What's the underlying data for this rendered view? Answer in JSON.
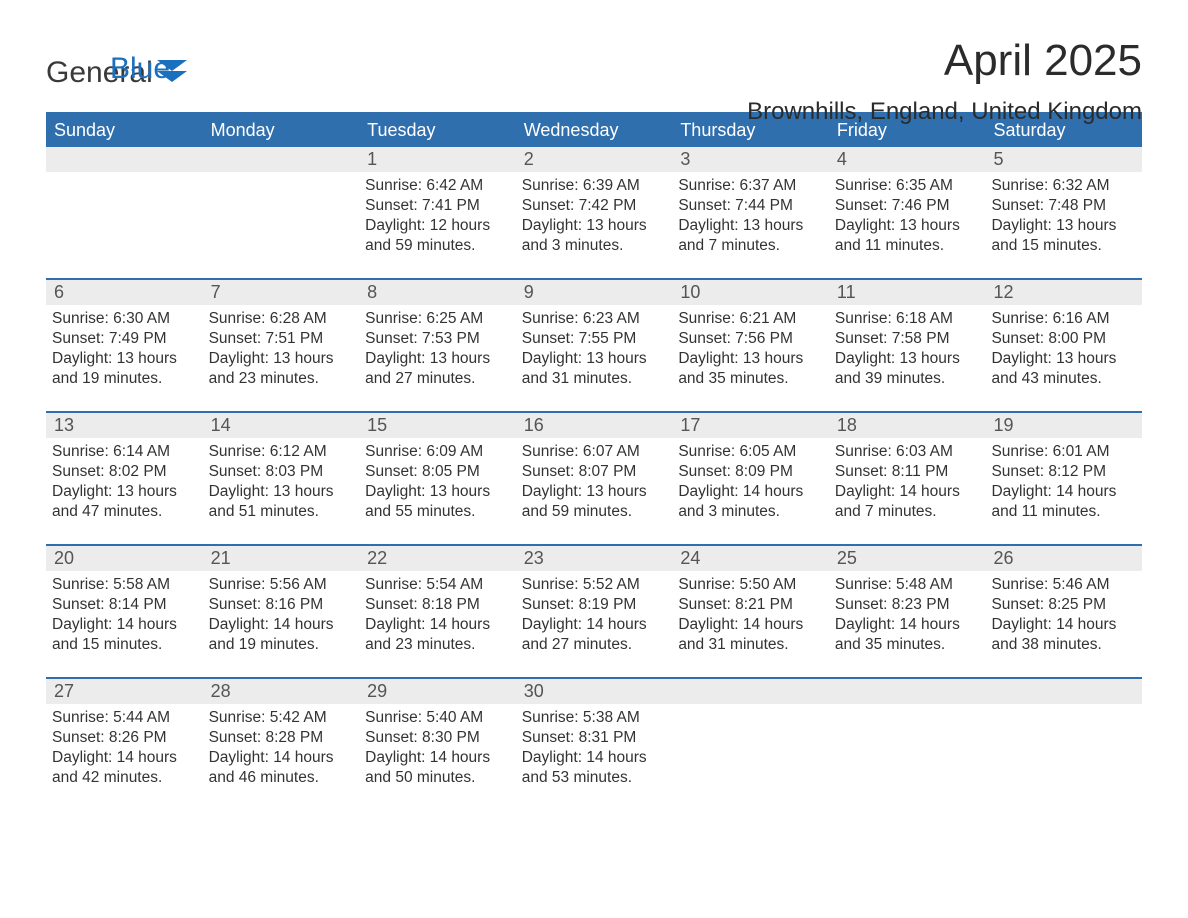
{
  "logo": {
    "word1": "General",
    "word2": "Blue"
  },
  "title": "April 2025",
  "location": "Brownhills, England, United Kingdom",
  "colors": {
    "header_bg": "#2f6fae",
    "header_text": "#ffffff",
    "daynum_bg": "#ececec",
    "daynum_text": "#555555",
    "body_text": "#333333",
    "logo_blue": "#1a6fbf",
    "page_bg": "#ffffff"
  },
  "typography": {
    "title_fontsize": 44,
    "location_fontsize": 24,
    "dow_fontsize": 18,
    "daynum_fontsize": 18,
    "detail_fontsize": 15.5
  },
  "days_of_week": [
    "Sunday",
    "Monday",
    "Tuesday",
    "Wednesday",
    "Thursday",
    "Friday",
    "Saturday"
  ],
  "weeks": [
    [
      null,
      null,
      {
        "n": "1",
        "sr": "Sunrise: 6:42 AM",
        "ss": "Sunset: 7:41 PM",
        "d1": "Daylight: 12 hours",
        "d2": "and 59 minutes."
      },
      {
        "n": "2",
        "sr": "Sunrise: 6:39 AM",
        "ss": "Sunset: 7:42 PM",
        "d1": "Daylight: 13 hours",
        "d2": "and 3 minutes."
      },
      {
        "n": "3",
        "sr": "Sunrise: 6:37 AM",
        "ss": "Sunset: 7:44 PM",
        "d1": "Daylight: 13 hours",
        "d2": "and 7 minutes."
      },
      {
        "n": "4",
        "sr": "Sunrise: 6:35 AM",
        "ss": "Sunset: 7:46 PM",
        "d1": "Daylight: 13 hours",
        "d2": "and 11 minutes."
      },
      {
        "n": "5",
        "sr": "Sunrise: 6:32 AM",
        "ss": "Sunset: 7:48 PM",
        "d1": "Daylight: 13 hours",
        "d2": "and 15 minutes."
      }
    ],
    [
      {
        "n": "6",
        "sr": "Sunrise: 6:30 AM",
        "ss": "Sunset: 7:49 PM",
        "d1": "Daylight: 13 hours",
        "d2": "and 19 minutes."
      },
      {
        "n": "7",
        "sr": "Sunrise: 6:28 AM",
        "ss": "Sunset: 7:51 PM",
        "d1": "Daylight: 13 hours",
        "d2": "and 23 minutes."
      },
      {
        "n": "8",
        "sr": "Sunrise: 6:25 AM",
        "ss": "Sunset: 7:53 PM",
        "d1": "Daylight: 13 hours",
        "d2": "and 27 minutes."
      },
      {
        "n": "9",
        "sr": "Sunrise: 6:23 AM",
        "ss": "Sunset: 7:55 PM",
        "d1": "Daylight: 13 hours",
        "d2": "and 31 minutes."
      },
      {
        "n": "10",
        "sr": "Sunrise: 6:21 AM",
        "ss": "Sunset: 7:56 PM",
        "d1": "Daylight: 13 hours",
        "d2": "and 35 minutes."
      },
      {
        "n": "11",
        "sr": "Sunrise: 6:18 AM",
        "ss": "Sunset: 7:58 PM",
        "d1": "Daylight: 13 hours",
        "d2": "and 39 minutes."
      },
      {
        "n": "12",
        "sr": "Sunrise: 6:16 AM",
        "ss": "Sunset: 8:00 PM",
        "d1": "Daylight: 13 hours",
        "d2": "and 43 minutes."
      }
    ],
    [
      {
        "n": "13",
        "sr": "Sunrise: 6:14 AM",
        "ss": "Sunset: 8:02 PM",
        "d1": "Daylight: 13 hours",
        "d2": "and 47 minutes."
      },
      {
        "n": "14",
        "sr": "Sunrise: 6:12 AM",
        "ss": "Sunset: 8:03 PM",
        "d1": "Daylight: 13 hours",
        "d2": "and 51 minutes."
      },
      {
        "n": "15",
        "sr": "Sunrise: 6:09 AM",
        "ss": "Sunset: 8:05 PM",
        "d1": "Daylight: 13 hours",
        "d2": "and 55 minutes."
      },
      {
        "n": "16",
        "sr": "Sunrise: 6:07 AM",
        "ss": "Sunset: 8:07 PM",
        "d1": "Daylight: 13 hours",
        "d2": "and 59 minutes."
      },
      {
        "n": "17",
        "sr": "Sunrise: 6:05 AM",
        "ss": "Sunset: 8:09 PM",
        "d1": "Daylight: 14 hours",
        "d2": "and 3 minutes."
      },
      {
        "n": "18",
        "sr": "Sunrise: 6:03 AM",
        "ss": "Sunset: 8:11 PM",
        "d1": "Daylight: 14 hours",
        "d2": "and 7 minutes."
      },
      {
        "n": "19",
        "sr": "Sunrise: 6:01 AM",
        "ss": "Sunset: 8:12 PM",
        "d1": "Daylight: 14 hours",
        "d2": "and 11 minutes."
      }
    ],
    [
      {
        "n": "20",
        "sr": "Sunrise: 5:58 AM",
        "ss": "Sunset: 8:14 PM",
        "d1": "Daylight: 14 hours",
        "d2": "and 15 minutes."
      },
      {
        "n": "21",
        "sr": "Sunrise: 5:56 AM",
        "ss": "Sunset: 8:16 PM",
        "d1": "Daylight: 14 hours",
        "d2": "and 19 minutes."
      },
      {
        "n": "22",
        "sr": "Sunrise: 5:54 AM",
        "ss": "Sunset: 8:18 PM",
        "d1": "Daylight: 14 hours",
        "d2": "and 23 minutes."
      },
      {
        "n": "23",
        "sr": "Sunrise: 5:52 AM",
        "ss": "Sunset: 8:19 PM",
        "d1": "Daylight: 14 hours",
        "d2": "and 27 minutes."
      },
      {
        "n": "24",
        "sr": "Sunrise: 5:50 AM",
        "ss": "Sunset: 8:21 PM",
        "d1": "Daylight: 14 hours",
        "d2": "and 31 minutes."
      },
      {
        "n": "25",
        "sr": "Sunrise: 5:48 AM",
        "ss": "Sunset: 8:23 PM",
        "d1": "Daylight: 14 hours",
        "d2": "and 35 minutes."
      },
      {
        "n": "26",
        "sr": "Sunrise: 5:46 AM",
        "ss": "Sunset: 8:25 PM",
        "d1": "Daylight: 14 hours",
        "d2": "and 38 minutes."
      }
    ],
    [
      {
        "n": "27",
        "sr": "Sunrise: 5:44 AM",
        "ss": "Sunset: 8:26 PM",
        "d1": "Daylight: 14 hours",
        "d2": "and 42 minutes."
      },
      {
        "n": "28",
        "sr": "Sunrise: 5:42 AM",
        "ss": "Sunset: 8:28 PM",
        "d1": "Daylight: 14 hours",
        "d2": "and 46 minutes."
      },
      {
        "n": "29",
        "sr": "Sunrise: 5:40 AM",
        "ss": "Sunset: 8:30 PM",
        "d1": "Daylight: 14 hours",
        "d2": "and 50 minutes."
      },
      {
        "n": "30",
        "sr": "Sunrise: 5:38 AM",
        "ss": "Sunset: 8:31 PM",
        "d1": "Daylight: 14 hours",
        "d2": "and 53 minutes."
      },
      null,
      null,
      null
    ]
  ]
}
